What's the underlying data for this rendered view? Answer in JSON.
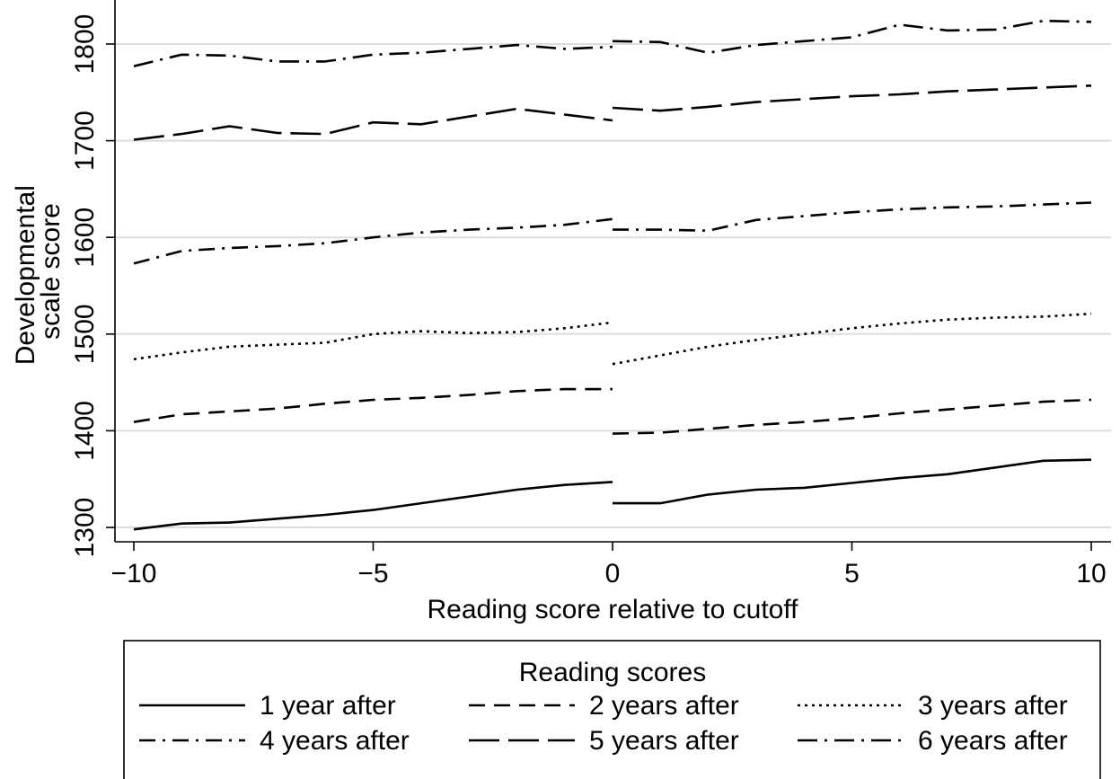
{
  "chart_data": {
    "type": "line",
    "title": "",
    "xlabel": "Reading score relative to cutoff",
    "ylabel_lines": [
      "Developmental",
      "scale score"
    ],
    "xlim": [
      -10,
      10
    ],
    "ylim": [
      1290,
      1840
    ],
    "xticks": [
      -10,
      -5,
      0,
      5,
      10
    ],
    "xtick_labels": [
      "−10",
      "−5",
      "0",
      "5",
      "10"
    ],
    "yticks": [
      1300,
      1400,
      1500,
      1600,
      1700,
      1800
    ],
    "ytick_labels": [
      "1300",
      "1400",
      "1500",
      "1600",
      "1700",
      "1800"
    ],
    "grid": "horizontal",
    "legend": {
      "title": "Reading scores",
      "placement": "bottom",
      "columns": 3
    },
    "series": [
      {
        "name": "1 year after",
        "dash": "solid",
        "left": {
          "x": [
            -10,
            -9,
            -8,
            -7,
            -6,
            -5,
            -4,
            -3,
            -2,
            -1,
            0
          ],
          "y": [
            1298,
            1304,
            1305,
            1309,
            1313,
            1318,
            1325,
            1332,
            1339,
            1344,
            1347
          ]
        },
        "right": {
          "x": [
            0,
            1,
            2,
            3,
            4,
            5,
            6,
            7,
            8,
            9,
            10
          ],
          "y": [
            1325,
            1325,
            1334,
            1339,
            1341,
            1346,
            1351,
            1355,
            1362,
            1369,
            1370
          ]
        }
      },
      {
        "name": "2 years after",
        "dash": "dash",
        "left": {
          "x": [
            -10,
            -9,
            -8,
            -7,
            -6,
            -5,
            -4,
            -3,
            -2,
            -1,
            0
          ],
          "y": [
            1409,
            1417,
            1420,
            1423,
            1428,
            1432,
            1434,
            1437,
            1441,
            1443,
            1443
          ]
        },
        "right": {
          "x": [
            0,
            1,
            2,
            3,
            4,
            5,
            6,
            7,
            8,
            9,
            10
          ],
          "y": [
            1397,
            1398,
            1402,
            1406,
            1409,
            1413,
            1418,
            1422,
            1426,
            1430,
            1432
          ]
        }
      },
      {
        "name": "3 years after",
        "dash": "dot",
        "left": {
          "x": [
            -10,
            -9,
            -8,
            -7,
            -6,
            -5,
            -4,
            -3,
            -2,
            -1,
            0
          ],
          "y": [
            1474,
            1481,
            1487,
            1489,
            1491,
            1500,
            1503,
            1501,
            1502,
            1506,
            1512
          ]
        },
        "right": {
          "x": [
            0,
            1,
            2,
            3,
            4,
            5,
            6,
            7,
            8,
            9,
            10
          ],
          "y": [
            1469,
            1478,
            1487,
            1494,
            1500,
            1506,
            1511,
            1515,
            1517,
            1518,
            1521
          ]
        }
      },
      {
        "name": "4 years after",
        "dash": "dashdot",
        "left": {
          "x": [
            -10,
            -9,
            -8,
            -7,
            -6,
            -5,
            -4,
            -3,
            -2,
            -1,
            0
          ],
          "y": [
            1573,
            1586,
            1589,
            1591,
            1594,
            1600,
            1605,
            1608,
            1610,
            1613,
            1619
          ]
        },
        "right": {
          "x": [
            0,
            1,
            2,
            3,
            4,
            5,
            6,
            7,
            8,
            9,
            10
          ],
          "y": [
            1608,
            1608,
            1607,
            1618,
            1622,
            1626,
            1629,
            1631,
            1632,
            1634,
            1636
          ]
        }
      },
      {
        "name": "5 years after",
        "dash": "longdash",
        "left": {
          "x": [
            -10,
            -9,
            -8,
            -7,
            -6,
            -5,
            -4,
            -3,
            -2,
            -1,
            0
          ],
          "y": [
            1701,
            1707,
            1715,
            1708,
            1707,
            1719,
            1717,
            1725,
            1733,
            1727,
            1721
          ]
        },
        "right": {
          "x": [
            0,
            1,
            2,
            3,
            4,
            5,
            6,
            7,
            8,
            9,
            10
          ],
          "y": [
            1734,
            1731,
            1735,
            1740,
            1743,
            1746,
            1748,
            1751,
            1753,
            1755,
            1757
          ]
        }
      },
      {
        "name": "6 years after",
        "dash": "longdashdot",
        "left": {
          "x": [
            -10,
            -9,
            -8,
            -7,
            -6,
            -5,
            -4,
            -3,
            -2,
            -1,
            0
          ],
          "y": [
            1777,
            1789,
            1788,
            1782,
            1782,
            1789,
            1791,
            1795,
            1799,
            1795,
            1797
          ]
        },
        "right": {
          "x": [
            0,
            1,
            2,
            3,
            4,
            5,
            6,
            7,
            8,
            9,
            10
          ],
          "y": [
            1803,
            1802,
            1791,
            1799,
            1803,
            1807,
            1820,
            1814,
            1815,
            1824,
            1823
          ]
        }
      }
    ]
  },
  "style": {
    "line_color": "#000000",
    "grid_color": "#dddddd",
    "background": "#ffffff"
  }
}
